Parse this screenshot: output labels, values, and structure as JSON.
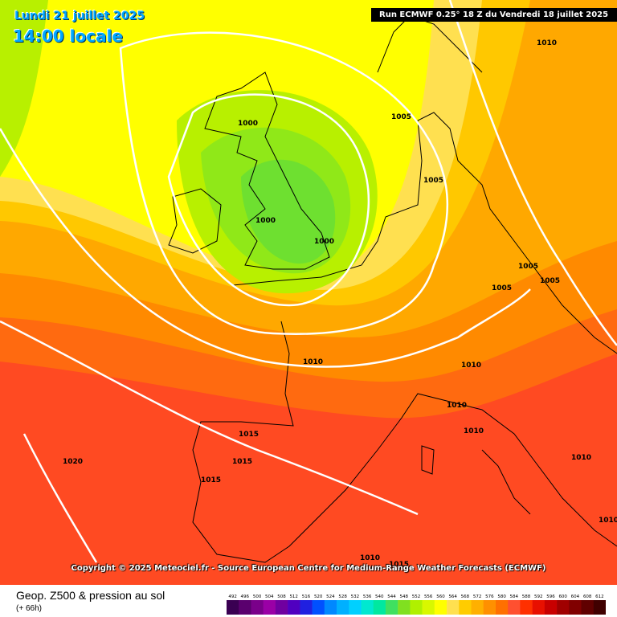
{
  "header": {
    "date": "Lundi 21 juillet 2025",
    "time": "14:00 locale",
    "run": "Run ECMWF 0.25° 18 Z du Vendredi 18 juillet 2025"
  },
  "copyright": "Copyright © 2025 Meteociel.fr - Source European Centre for Medium-Range Weather Forecasts (ECMWF)",
  "footer": {
    "title": "Geop. Z500 & pression au sol",
    "subtitle": "(+ 66h)"
  },
  "scale": {
    "labels": [
      "492",
      "496",
      "500",
      "504",
      "508",
      "512",
      "516",
      "520",
      "524",
      "528",
      "532",
      "536",
      "540",
      "544",
      "548",
      "552",
      "556",
      "560",
      "564",
      "568",
      "572",
      "576",
      "580",
      "584",
      "588",
      "592",
      "596",
      "600",
      "604",
      "608",
      "612"
    ],
    "colors": [
      "#3a0052",
      "#5a006e",
      "#7a008a",
      "#9a00a6",
      "#7000a0",
      "#5000c0",
      "#2020e0",
      "#0050ff",
      "#0088ff",
      "#00b0ff",
      "#00d0ff",
      "#00e8d0",
      "#00e8a0",
      "#40e060",
      "#80e020",
      "#b0f000",
      "#d8f800",
      "#ffff00",
      "#ffe050",
      "#ffcc00",
      "#ffb000",
      "#ff9000",
      "#ff7000",
      "#ff5030",
      "#ff3000",
      "#e81000",
      "#c80000",
      "#a00000",
      "#800000",
      "#600000",
      "#400000"
    ]
  },
  "isobars": [
    {
      "label": "1000"
    },
    {
      "label": "1000"
    },
    {
      "label": "1000"
    },
    {
      "label": "1005"
    },
    {
      "label": "1005"
    },
    {
      "label": "1005"
    },
    {
      "label": "1005"
    },
    {
      "label": "1005"
    },
    {
      "label": "1010"
    },
    {
      "label": "1010"
    },
    {
      "label": "1010"
    },
    {
      "label": "1010"
    },
    {
      "label": "1010"
    },
    {
      "label": "1010"
    },
    {
      "label": "1010"
    },
    {
      "label": "1010"
    },
    {
      "label": "1015"
    },
    {
      "label": "1015"
    },
    {
      "label": "1015"
    },
    {
      "label": "1015"
    },
    {
      "label": "1020"
    }
  ]
}
